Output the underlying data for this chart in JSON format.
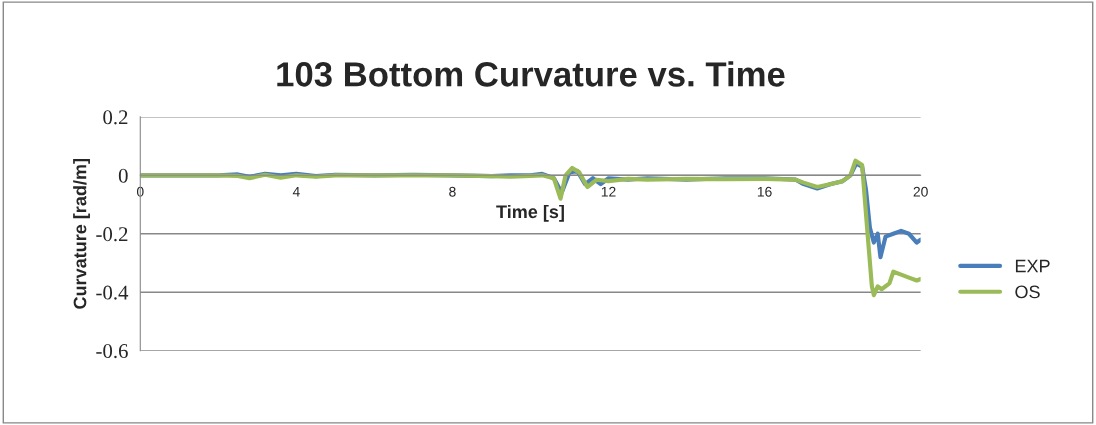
{
  "chart_data": {
    "type": "line",
    "title": "103 Bottom Curvature vs. Time",
    "xlabel": "Time [s]",
    "ylabel": "Curvature [rad/m]",
    "xlim": [
      0,
      20
    ],
    "xticks": [
      0,
      4,
      8,
      12,
      16,
      20
    ],
    "ylim": [
      -0.6,
      0.2
    ],
    "yticks": [
      0.2,
      0,
      -0.2,
      -0.4,
      -0.6
    ],
    "grid": "y",
    "legend": "right",
    "marker": "none",
    "line_style": "solid",
    "series": [
      {
        "name": "EXP",
        "color": "#4a7ebb",
        "x": [
          0,
          2,
          2.5,
          2.8,
          3.2,
          3.6,
          4,
          4.5,
          5,
          6,
          7,
          8,
          9,
          9.5,
          10,
          10.3,
          10.6,
          10.8,
          11,
          11.2,
          11.4,
          11.6,
          11.8,
          12,
          12.5,
          13,
          14,
          15,
          16,
          16.8,
          17,
          17.35,
          17.7,
          18,
          18.2,
          18.35,
          18.5,
          18.6,
          18.7,
          18.8,
          18.9,
          18.97,
          19.1,
          19.3,
          19.5,
          19.7,
          19.9,
          20
        ],
        "values": [
          0,
          0,
          0.003,
          -0.005,
          0.005,
          0,
          0.005,
          -0.003,
          0.002,
          0,
          0.002,
          0,
          -0.003,
          0,
          0,
          0.005,
          -0.01,
          -0.06,
          0.01,
          0.015,
          -0.03,
          -0.01,
          -0.03,
          -0.01,
          -0.015,
          -0.01,
          -0.015,
          -0.01,
          -0.01,
          -0.015,
          -0.03,
          -0.045,
          -0.03,
          -0.02,
          0,
          0.04,
          0.03,
          -0.05,
          -0.18,
          -0.23,
          -0.2,
          -0.28,
          -0.21,
          -0.2,
          -0.19,
          -0.2,
          -0.23,
          -0.22
        ]
      },
      {
        "name": "OS",
        "color": "#9bbb59",
        "x": [
          0,
          2,
          2.5,
          2.8,
          3.2,
          3.6,
          4,
          4.5,
          5,
          6,
          7,
          8,
          9,
          9.5,
          10,
          10.3,
          10.6,
          10.77,
          10.9,
          11.07,
          11.25,
          11.46,
          11.7,
          12,
          12.5,
          13,
          14,
          15,
          16,
          16.8,
          17,
          17.35,
          17.7,
          18,
          18.2,
          18.33,
          18.5,
          18.64,
          18.75,
          18.8,
          18.9,
          19,
          19.2,
          19.3,
          19.5,
          19.7,
          19.9,
          20
        ],
        "values": [
          0,
          0,
          -0.002,
          -0.01,
          0.002,
          -0.008,
          0,
          -0.005,
          0,
          0,
          0,
          0,
          -0.003,
          -0.005,
          -0.002,
          0,
          -0.01,
          -0.08,
          0,
          0.025,
          0.01,
          -0.04,
          -0.015,
          -0.02,
          -0.012,
          -0.015,
          -0.012,
          -0.013,
          -0.012,
          -0.015,
          -0.025,
          -0.04,
          -0.03,
          -0.02,
          0,
          0.05,
          0.035,
          -0.2,
          -0.38,
          -0.41,
          -0.38,
          -0.39,
          -0.37,
          -0.33,
          -0.34,
          -0.35,
          -0.36,
          -0.355
        ]
      }
    ]
  }
}
